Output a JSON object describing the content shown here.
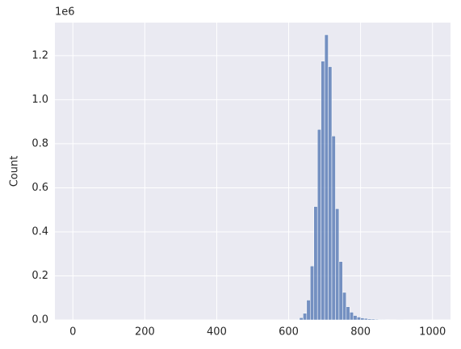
{
  "chart_data": {
    "type": "histogram",
    "ylabel": "Count",
    "y_offset_label": "1e6",
    "bins": [
      0,
      10,
      20,
      30,
      40,
      50,
      60,
      70,
      80,
      90,
      100,
      110,
      120,
      130,
      140,
      150,
      160,
      170,
      180,
      190,
      200,
      210,
      220,
      230,
      240,
      250,
      260,
      270,
      280,
      290,
      300,
      310,
      320,
      330,
      340,
      350,
      360,
      370,
      380,
      390,
      400,
      410,
      420,
      430,
      440,
      450,
      460,
      470,
      480,
      490,
      500,
      510,
      520,
      530,
      540,
      550,
      560,
      570,
      580,
      590,
      600,
      610,
      620,
      630,
      640,
      650,
      660,
      670,
      680,
      690,
      700,
      710,
      720,
      730,
      740,
      750,
      760,
      770,
      780,
      790,
      800,
      810,
      820,
      830,
      840,
      850,
      860,
      870,
      880,
      890,
      900,
      910,
      920,
      930,
      940,
      950,
      960,
      970,
      980,
      990,
      1000
    ],
    "values": [
      0,
      0,
      0,
      0,
      0,
      0,
      0,
      0,
      0,
      0,
      0,
      0,
      0,
      0,
      0,
      0,
      0,
      0,
      0,
      0,
      0,
      0,
      0,
      0,
      0,
      0,
      0,
      0,
      0,
      0,
      0,
      0,
      0,
      0,
      0,
      0,
      0,
      0,
      0,
      0,
      0,
      0,
      0,
      0,
      0,
      0,
      0,
      0,
      0,
      0,
      0,
      0,
      0,
      0,
      0,
      0,
      0,
      0,
      0,
      0,
      0,
      0,
      2000,
      10000,
      30000,
      90000,
      245000,
      515000,
      865000,
      1175000,
      1295000,
      1150000,
      835000,
      505000,
      265000,
      125000,
      60000,
      35000,
      20000,
      13000,
      9000,
      7000,
      5000,
      4000,
      3000,
      2000,
      2000,
      1500,
      1000,
      1000,
      500,
      500,
      0,
      0,
      0,
      0,
      0,
      0,
      0,
      0
    ],
    "color": "#4c72b0",
    "xlim": [
      -50,
      1050
    ],
    "xticks": [
      0,
      200,
      400,
      600,
      800,
      1000
    ],
    "ylim": [
      0,
      1350000
    ],
    "yticks": [
      {
        "value": 0,
        "label": "0.0"
      },
      {
        "value": 200000,
        "label": "0.2"
      },
      {
        "value": 400000,
        "label": "0.4"
      },
      {
        "value": 600000,
        "label": "0.6"
      },
      {
        "value": 800000,
        "label": "0.8"
      },
      {
        "value": 1000000,
        "label": "1.0"
      },
      {
        "value": 1200000,
        "label": "1.2"
      }
    ],
    "grid": true
  }
}
